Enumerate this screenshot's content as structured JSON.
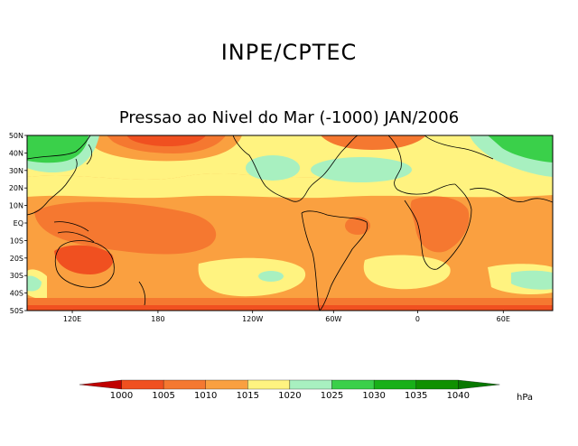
{
  "header": {
    "title": "INPE/CPTEC"
  },
  "map": {
    "title": "Pressao ao Nivel do Mar (-1000) JAN/2006",
    "lat_labels": [
      "50N",
      "40N",
      "30N",
      "20N",
      "10N",
      "EQ",
      "10S",
      "20S",
      "30S",
      "40S",
      "50S"
    ],
    "lon_labels": [
      "120E",
      "180",
      "120W",
      "60W",
      "0",
      "60E"
    ]
  },
  "colorbar": {
    "levels": [
      "1000",
      "1005",
      "1010",
      "1015",
      "1020",
      "1025",
      "1030",
      "1035",
      "1040"
    ],
    "unit": "hPa",
    "colors": [
      "#c00000",
      "#f05020",
      "#f57830",
      "#faa040",
      "#fff380",
      "#a8f0c0",
      "#3ad04a",
      "#18b018",
      "#109000",
      "#087800"
    ]
  }
}
